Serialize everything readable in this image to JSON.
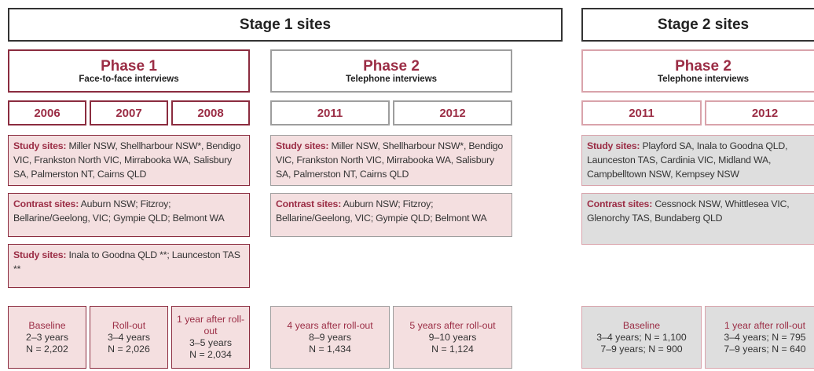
{
  "stages": [
    {
      "title": "Stage 1 sites",
      "phases": [
        {
          "title": "Phase 1",
          "subtitle": "Face-to-face interviews",
          "years": [
            "2006",
            "2007",
            "2008"
          ],
          "blocks": [
            {
              "label": "Study sites:",
              "text": "Miller NSW, Shellharbour NSW*, Bendigo VIC, Frankston North VIC, Mirrabooka WA, Salisbury SA, Palmerston NT, Cairns QLD"
            },
            {
              "label": "Contrast sites:",
              "text": "Auburn NSW; Fitzroy; Bellarine/Geelong, VIC; Gympie QLD; Belmont WA"
            },
            {
              "label": "Study sites:",
              "text": "Inala to Goodna QLD **; Launceston TAS **"
            }
          ],
          "outcomes": [
            {
              "lines": [
                "Baseline",
                "2–3 years",
                "N = 2,202"
              ]
            },
            {
              "lines": [
                "Roll-out",
                "3–4 years",
                "N = 2,026"
              ]
            },
            {
              "lines": [
                "1 year after roll-out",
                "3–5 years",
                "N = 2,034"
              ]
            }
          ]
        },
        {
          "title": "Phase 2",
          "subtitle": "Telephone interviews",
          "years": [
            "2011",
            "2012"
          ],
          "blocks": [
            {
              "label": "Study sites:",
              "text": "Miller NSW, Shellharbour NSW*, Bendigo VIC, Frankston North VIC, Mirrabooka WA, Salisbury SA, Palmerston NT, Cairns QLD"
            },
            {
              "label": "Contrast sites:",
              "text": "Auburn NSW; Fitzroy; Bellarine/Geelong, VIC; Gympie QLD; Belmont WA"
            }
          ],
          "outcomes": [
            {
              "lines": [
                "4 years after roll-out",
                "8–9 years",
                "N = 1,434"
              ]
            },
            {
              "lines": [
                "5 years after roll-out",
                "9–10 years",
                "N = 1,124"
              ]
            }
          ]
        }
      ]
    },
    {
      "title": "Stage 2 sites",
      "phases": [
        {
          "title": "Phase 2",
          "subtitle": "Telephone interviews",
          "years": [
            "2011",
            "2012"
          ],
          "blocks": [
            {
              "label": "Study sites:",
              "text": "Playford SA, Inala to Goodna QLD, Launceston TAS, Cardinia VIC, Midland WA, Campbelltown NSW, Kempsey NSW"
            },
            {
              "label": "Contrast sites:",
              "text": "Cessnock NSW, Whittlesea VIC, Glenorchy TAS, Bundaberg QLD"
            }
          ],
          "outcomes": [
            {
              "lines": [
                "Baseline",
                "3–4 years; N = 1,100",
                "7–9 years; N = 900"
              ]
            },
            {
              "lines": [
                "1 year after roll-out",
                "3–4 years; N = 795",
                "7–9 years; N = 640"
              ]
            }
          ]
        }
      ]
    }
  ]
}
